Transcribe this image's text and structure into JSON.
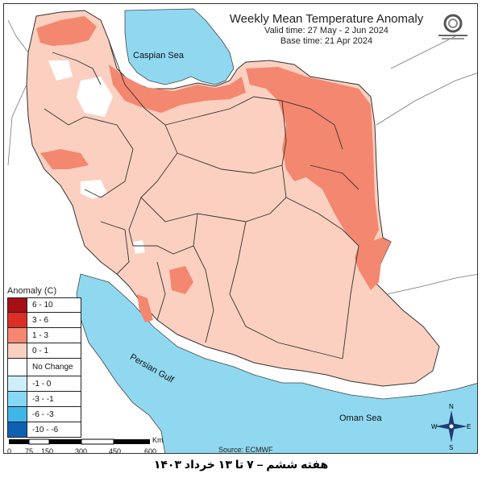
{
  "header": {
    "title": "Weekly Mean Temperature Anomaly",
    "valid_time": "Valid time: 27 May - 2 Jun 2024",
    "base_time": "Base time: 21 Apr 2024"
  },
  "legend": {
    "title": "Anomaly (C)",
    "items": [
      {
        "label": "6 - 10",
        "color": "#a50f15"
      },
      {
        "label": "3 - 6",
        "color": "#de2d26"
      },
      {
        "label": "1 - 3",
        "color": "#f4876f"
      },
      {
        "label": "0 - 1",
        "color": "#fbd0c0"
      },
      {
        "label": "No Change",
        "color": "#ffffff"
      },
      {
        "label": "-1 - 0",
        "color": "#cdeffb"
      },
      {
        "label": "-3 - -1",
        "color": "#87d8f5"
      },
      {
        "label": "-6 - -3",
        "color": "#3fb6ea"
      },
      {
        "label": "-10 - -6",
        "color": "#0c61b3"
      }
    ]
  },
  "seas": {
    "caspian": "Caspian Sea",
    "persian_gulf": "Persian Gulf",
    "oman": "Oman Sea"
  },
  "scale": {
    "ticks": [
      "0",
      "75",
      "150",
      "300",
      "450",
      "600"
    ],
    "unit": "Km"
  },
  "source": "Source: ECMWF",
  "caption": "هفته ششم – ۷ تا ۱۳ خرداد ۱۴۰۳",
  "compass": {
    "n": "N",
    "s": "S",
    "e": "E",
    "w": "W"
  },
  "colors": {
    "sea": "#8fd8f0",
    "land_out": "#ffffff",
    "border": "#444444"
  }
}
